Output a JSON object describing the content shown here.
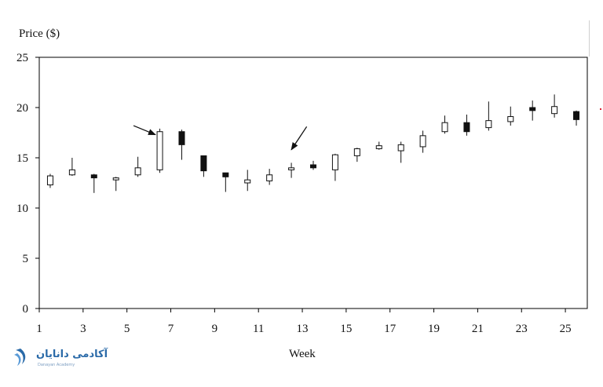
{
  "chart_data": {
    "type": "candlestick",
    "title": "",
    "ylabel": "Price ($)",
    "xlabel": "Week",
    "ylim": [
      0,
      25
    ],
    "xlim": [
      1,
      26
    ],
    "yticks": [
      "0",
      "5",
      "10",
      "15",
      "20",
      "25"
    ],
    "xticks": [
      "1",
      "3",
      "5",
      "7",
      "9",
      "11",
      "13",
      "15",
      "17",
      "19",
      "21",
      "23",
      "25"
    ],
    "xtick_values": [
      1,
      3,
      5,
      7,
      9,
      11,
      13,
      15,
      17,
      19,
      21,
      23,
      25
    ],
    "ytick_values": [
      0,
      5,
      10,
      15,
      20,
      25
    ],
    "grid": false,
    "colors": {
      "up": "#ffffff",
      "down": "#111111",
      "axis": "#000000"
    },
    "candles": [
      {
        "x": 1.5,
        "open": 12.3,
        "close": 13.2,
        "high": 13.4,
        "low": 12.0
      },
      {
        "x": 2.5,
        "open": 13.3,
        "close": 13.8,
        "high": 15.0,
        "low": 13.2
      },
      {
        "x": 3.5,
        "open": 13.3,
        "close": 13.0,
        "high": 13.4,
        "low": 11.5
      },
      {
        "x": 4.5,
        "open": 12.8,
        "close": 13.0,
        "high": 13.1,
        "low": 11.7
      },
      {
        "x": 5.5,
        "open": 13.3,
        "close": 14.0,
        "high": 15.1,
        "low": 13.1
      },
      {
        "x": 6.5,
        "open": 13.8,
        "close": 17.6,
        "high": 17.9,
        "low": 13.5
      },
      {
        "x": 7.5,
        "open": 17.6,
        "close": 16.3,
        "high": 17.8,
        "low": 14.8
      },
      {
        "x": 8.5,
        "open": 15.2,
        "close": 13.7,
        "high": 15.2,
        "low": 13.1
      },
      {
        "x": 9.5,
        "open": 13.5,
        "close": 13.1,
        "high": 13.5,
        "low": 11.6
      },
      {
        "x": 10.5,
        "open": 12.5,
        "close": 12.8,
        "high": 13.8,
        "low": 11.7
      },
      {
        "x": 11.5,
        "open": 12.7,
        "close": 13.3,
        "high": 13.9,
        "low": 12.3
      },
      {
        "x": 12.5,
        "open": 13.8,
        "close": 14.0,
        "high": 14.5,
        "low": 13.0
      },
      {
        "x": 13.5,
        "open": 14.3,
        "close": 14.0,
        "high": 14.7,
        "low": 13.8
      },
      {
        "x": 14.5,
        "open": 13.8,
        "close": 15.3,
        "high": 15.4,
        "low": 12.7
      },
      {
        "x": 15.5,
        "open": 15.2,
        "close": 15.9,
        "high": 16.0,
        "low": 14.6
      },
      {
        "x": 16.5,
        "open": 15.9,
        "close": 16.2,
        "high": 16.6,
        "low": 15.8
      },
      {
        "x": 17.5,
        "open": 15.7,
        "close": 16.3,
        "high": 16.6,
        "low": 14.5
      },
      {
        "x": 18.5,
        "open": 16.1,
        "close": 17.2,
        "high": 17.7,
        "low": 15.5
      },
      {
        "x": 19.5,
        "open": 17.6,
        "close": 18.5,
        "high": 19.2,
        "low": 17.4
      },
      {
        "x": 20.5,
        "open": 18.5,
        "close": 17.6,
        "high": 19.3,
        "low": 17.2
      },
      {
        "x": 21.5,
        "open": 18.0,
        "close": 18.7,
        "high": 20.6,
        "low": 17.7
      },
      {
        "x": 22.5,
        "open": 18.6,
        "close": 19.1,
        "high": 20.1,
        "low": 18.2
      },
      {
        "x": 23.5,
        "open": 20.0,
        "close": 19.7,
        "high": 20.7,
        "low": 18.7
      },
      {
        "x": 24.5,
        "open": 19.4,
        "close": 20.1,
        "high": 21.3,
        "low": 19.0
      },
      {
        "x": 25.5,
        "open": 19.6,
        "close": 18.8,
        "high": 19.7,
        "low": 18.2
      }
    ],
    "annotations": [
      {
        "type": "arrow",
        "from": [
          5.3,
          18.2
        ],
        "to": [
          6.3,
          17.3
        ]
      },
      {
        "type": "arrow",
        "from": [
          13.2,
          18.1
        ],
        "to": [
          12.5,
          15.8
        ]
      }
    ]
  },
  "watermark": {
    "text": "آکادمی دانایان",
    "subtext": "Danayan Academy"
  }
}
